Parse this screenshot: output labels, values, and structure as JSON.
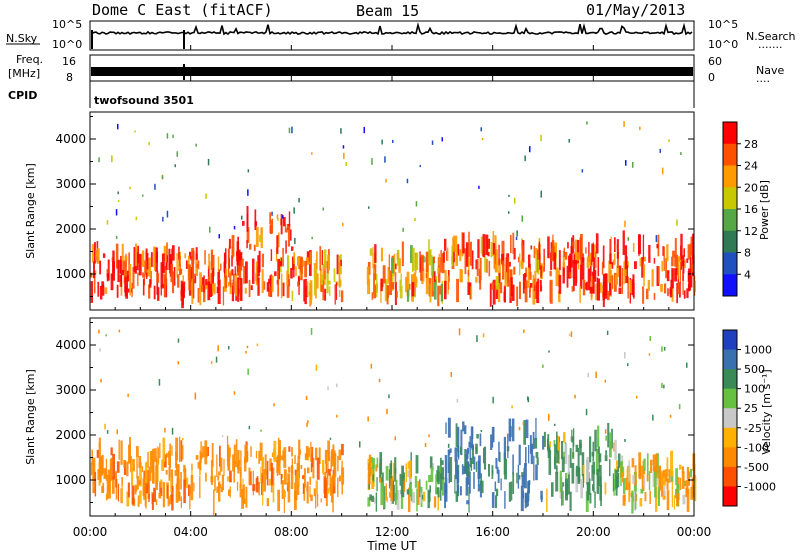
{
  "header": {
    "radar": "Dome C East (fitACF)",
    "beam": "Beam 15",
    "date": "01/May/2013"
  },
  "strip": {
    "nsky_label": "N.Sky",
    "nsearch_label": "N.Search",
    "nsearch_dots": ".......",
    "noise_ticks_left": [
      "10^5",
      "10^0"
    ],
    "noise_ticks_right": [
      "10^5",
      "10^0"
    ],
    "freq_label_1": "Freq.",
    "freq_label_2": "[MHz]",
    "freq_ticks": [
      "16",
      "8"
    ],
    "nave_label": "Nave",
    "nave_dots": "....",
    "nave_ticks": [
      "60",
      "0"
    ],
    "cpid_label": "CPID",
    "cpid_value": "twofsound 3501"
  },
  "axes": {
    "ylabel": "Slant Range [km]",
    "xlabel": "Time UT",
    "y_ticks": [
      "1000",
      "2000",
      "3000",
      "4000"
    ],
    "x_ticks": [
      "00:00",
      "04:00",
      "08:00",
      "12:00",
      "16:00",
      "20:00",
      "00:00"
    ]
  },
  "colorbars": {
    "power": {
      "label": "Power [dB]",
      "ticks": [
        "4",
        "8",
        "12",
        "16",
        "20",
        "24",
        "28"
      ],
      "colors": [
        "#1010ff",
        "#2050c0",
        "#2d7a55",
        "#55a845",
        "#c8c800",
        "#ff9a00",
        "#ff5000",
        "#ff0000"
      ]
    },
    "velocity": {
      "label": "Velocity [m s⁻¹]",
      "ticks": [
        "1000",
        "500",
        "100",
        "25",
        "-25",
        "-100",
        "-500",
        "-1000"
      ],
      "colors": [
        "#1f3fbf",
        "#3a6fb0",
        "#3a8a58",
        "#66c140",
        "#c8c8c8",
        "#ffb000",
        "#ff8a00",
        "#ff5000",
        "#ff0000"
      ]
    }
  },
  "chart_data": [
    {
      "type": "heatmap",
      "title": "Power [dB]",
      "xlabel": "Time UT",
      "ylabel": "Slant Range [km]",
      "xlim": [
        0,
        24
      ],
      "ylim": [
        200,
        4600
      ],
      "x_ticks": [
        "00:00",
        "04:00",
        "08:00",
        "12:00",
        "16:00",
        "20:00",
        "00:00"
      ],
      "y_ticks": [
        1000,
        2000,
        3000,
        4000
      ],
      "colorscale": {
        "min": 0,
        "max": 30,
        "ticks": [
          4,
          8,
          12,
          16,
          20,
          24,
          28
        ]
      },
      "echo_bands": [
        {
          "t_start": 0.0,
          "t_end": 6.0,
          "range_min": 500,
          "range_max": 1500,
          "value": 28
        },
        {
          "t_start": 5.5,
          "t_end": 8.0,
          "range_min": 600,
          "range_max": 2300,
          "value": 26
        },
        {
          "t_start": 8.0,
          "t_end": 10.0,
          "range_min": 500,
          "range_max": 1400,
          "value": 24
        },
        {
          "t_start": 11.0,
          "t_end": 14.0,
          "range_min": 500,
          "range_max": 1500,
          "value": 22
        },
        {
          "t_start": 14.0,
          "t_end": 18.0,
          "range_min": 500,
          "range_max": 1700,
          "value": 26
        },
        {
          "t_start": 18.0,
          "t_end": 24.0,
          "range_min": 500,
          "range_max": 1700,
          "value": 28
        }
      ]
    },
    {
      "type": "heatmap",
      "title": "Velocity [m s⁻¹]",
      "xlabel": "Time UT",
      "ylabel": "Slant Range [km]",
      "xlim": [
        0,
        24
      ],
      "ylim": [
        200,
        4600
      ],
      "x_ticks": [
        "00:00",
        "04:00",
        "08:00",
        "12:00",
        "16:00",
        "20:00",
        "00:00"
      ],
      "y_ticks": [
        1000,
        2000,
        3000,
        4000
      ],
      "colorscale": {
        "ticks": [
          1000,
          500,
          100,
          25,
          -25,
          -100,
          -500,
          -1000
        ]
      },
      "echo_bands": [
        {
          "t_start": 0.0,
          "t_end": 10.0,
          "range_min": 500,
          "range_max": 1700,
          "value": -300
        },
        {
          "t_start": 11.0,
          "t_end": 14.0,
          "range_min": 500,
          "range_max": 1400,
          "value": 60
        },
        {
          "t_start": 14.0,
          "t_end": 18.0,
          "range_min": 500,
          "range_max": 2200,
          "value": 600
        },
        {
          "t_start": 18.0,
          "t_end": 21.0,
          "range_min": 500,
          "range_max": 2000,
          "value": 150
        },
        {
          "t_start": 21.0,
          "t_end": 24.0,
          "range_min": 500,
          "range_max": 1400,
          "value": -150
        }
      ]
    }
  ]
}
